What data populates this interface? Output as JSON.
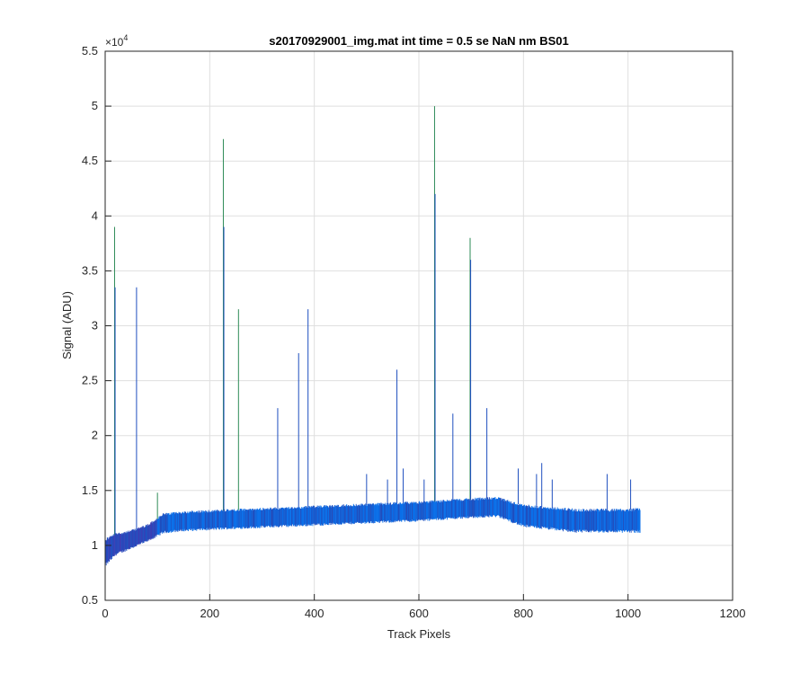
{
  "chart_data": {
    "type": "line",
    "title": "s20170929001_img.mat int time = 0.5 se  NaN nm BS01",
    "xlabel": "Track Pixels",
    "ylabel": "Signal (ADU)",
    "xlim": [
      0,
      1200
    ],
    "ylim": [
      5000,
      55000
    ],
    "x_ticks": [
      0,
      200,
      400,
      600,
      800,
      1000,
      1200
    ],
    "y_ticks": [
      5000,
      10000,
      15000,
      20000,
      25000,
      30000,
      35000,
      40000,
      45000,
      50000,
      55000
    ],
    "x_tick_labels": [
      "0",
      "200",
      "400",
      "600",
      "800",
      "1000",
      "1200"
    ],
    "y_tick_labels": [
      "0.5",
      "1",
      "1.5",
      "2",
      "2.5",
      "3",
      "3.5",
      "4",
      "4.5",
      "5",
      "5.5"
    ],
    "y_exponent_base": "×10",
    "y_exponent_power": "4",
    "grid": true,
    "legend": "none",
    "series_colors": [
      "#1f4fbf",
      "#0b6fe8",
      "#3a3fb5",
      "#2e8b57"
    ],
    "n_pixels": 1024,
    "band": {
      "x": [
        0,
        20,
        50,
        80,
        100,
        110,
        150,
        200,
        300,
        400,
        500,
        600,
        700,
        750,
        800,
        900,
        1000,
        1024
      ],
      "low": [
        8200,
        9200,
        9800,
        10400,
        10900,
        11200,
        11400,
        11500,
        11700,
        11900,
        12100,
        12300,
        12600,
        12700,
        11800,
        11300,
        11300,
        11300
      ],
      "high": [
        10500,
        11000,
        11300,
        11800,
        12400,
        12800,
        13000,
        13100,
        13300,
        13500,
        13700,
        13900,
        14200,
        14300,
        13600,
        13200,
        13200,
        13300
      ]
    },
    "spikes": [
      {
        "x": 18,
        "y": 39000,
        "color": "#2e8b57"
      },
      {
        "x": 19,
        "y": 33500,
        "color": "#1f4fbf"
      },
      {
        "x": 60,
        "y": 33500,
        "color": "#1f4fbf"
      },
      {
        "x": 100,
        "y": 14800,
        "color": "#2e8b57"
      },
      {
        "x": 226,
        "y": 47000,
        "color": "#2e8b57"
      },
      {
        "x": 227,
        "y": 39000,
        "color": "#1f4fbf"
      },
      {
        "x": 255,
        "y": 31500,
        "color": "#2e8b57"
      },
      {
        "x": 330,
        "y": 22500,
        "color": "#1f4fbf"
      },
      {
        "x": 370,
        "y": 27500,
        "color": "#1f4fbf"
      },
      {
        "x": 388,
        "y": 31500,
        "color": "#1f4fbf"
      },
      {
        "x": 500,
        "y": 16500,
        "color": "#1f4fbf"
      },
      {
        "x": 540,
        "y": 16000,
        "color": "#1f4fbf"
      },
      {
        "x": 558,
        "y": 26000,
        "color": "#1f4fbf"
      },
      {
        "x": 570,
        "y": 17000,
        "color": "#1f4fbf"
      },
      {
        "x": 610,
        "y": 16000,
        "color": "#1f4fbf"
      },
      {
        "x": 630,
        "y": 50000,
        "color": "#2e8b57"
      },
      {
        "x": 631,
        "y": 42000,
        "color": "#1f4fbf"
      },
      {
        "x": 665,
        "y": 22000,
        "color": "#1f4fbf"
      },
      {
        "x": 698,
        "y": 38000,
        "color": "#2e8b57"
      },
      {
        "x": 699,
        "y": 36000,
        "color": "#1f4fbf"
      },
      {
        "x": 730,
        "y": 22500,
        "color": "#1f4fbf"
      },
      {
        "x": 790,
        "y": 17000,
        "color": "#1f4fbf"
      },
      {
        "x": 825,
        "y": 16500,
        "color": "#1f4fbf"
      },
      {
        "x": 835,
        "y": 17500,
        "color": "#1f4fbf"
      },
      {
        "x": 855,
        "y": 16000,
        "color": "#1f4fbf"
      },
      {
        "x": 960,
        "y": 16500,
        "color": "#1f4fbf"
      },
      {
        "x": 1005,
        "y": 16000,
        "color": "#1f4fbf"
      }
    ]
  }
}
